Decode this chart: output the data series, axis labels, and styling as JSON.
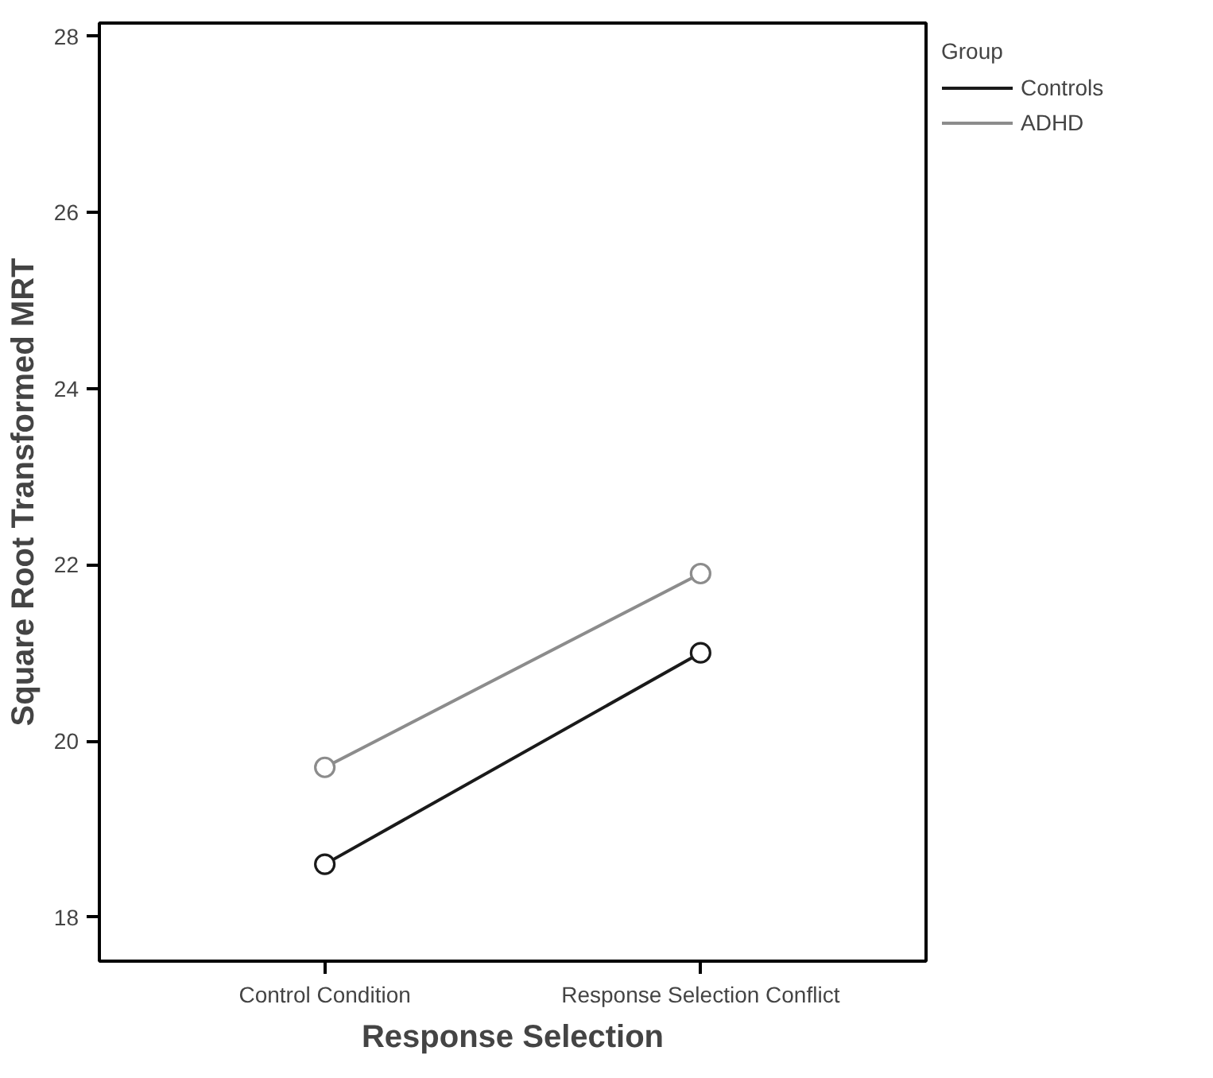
{
  "chart_data": {
    "type": "line",
    "xlabel": "Response Selection",
    "ylabel": "Square Root Transformed MRT",
    "legend_title": "Group",
    "categories": [
      "Control Condition",
      "Response Selection Conflict"
    ],
    "series": [
      {
        "name": "Controls",
        "color": "#1a1a1a",
        "values": [
          18.6,
          21.0
        ]
      },
      {
        "name": "ADHD",
        "color": "#8c8c8c",
        "values": [
          19.7,
          21.9
        ]
      }
    ],
    "ylim": [
      17.5,
      28.15
    ],
    "yticks": [
      18,
      20,
      22,
      24,
      26,
      28
    ],
    "grid": false,
    "legend": "top right",
    "marker": "circle",
    "line_style": "solid"
  }
}
